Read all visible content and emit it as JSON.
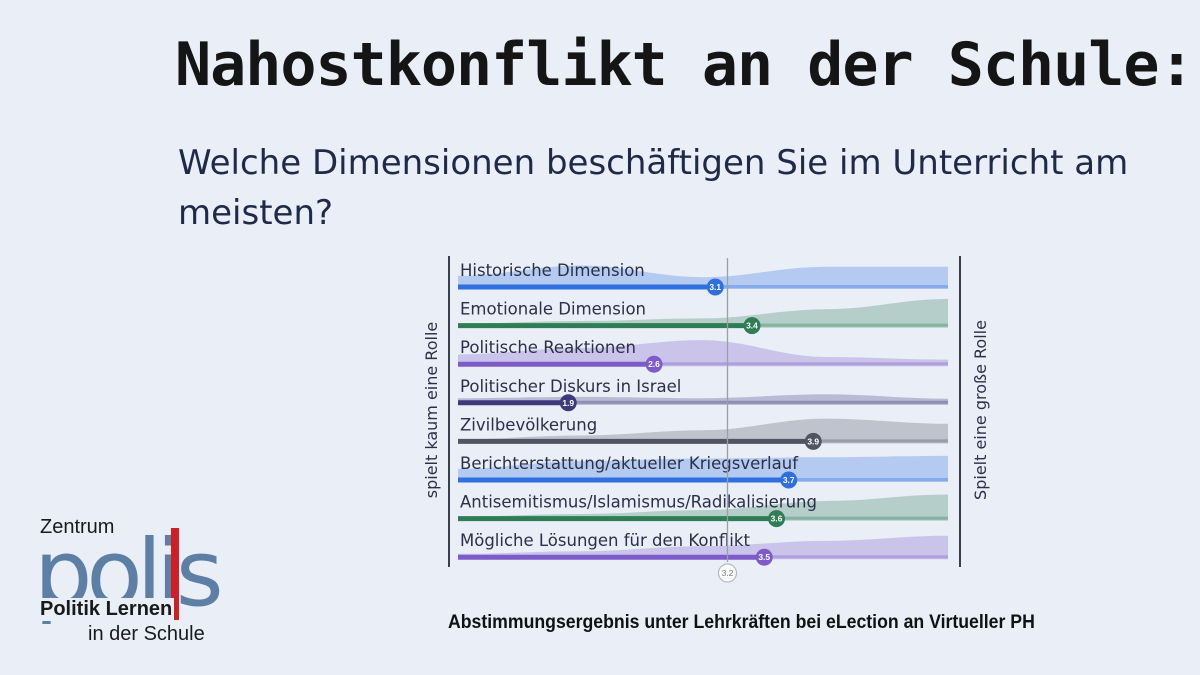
{
  "title": "Nahostkonflikt an der Schule:",
  "question": "Welche Dimensionen beschäftigen Sie im Unterricht am meisten?",
  "caption": "Abstimmungsergebnis unter Lehrkräften bei eLection an Virtueller PH",
  "logo": {
    "top": "Zentrum",
    "big": "polis",
    "line1": "Politik Lernen",
    "line2": "in der Schule",
    "brand_color": "#5d7fa6",
    "accent_color": "#cf1f25"
  },
  "chart_data": {
    "type": "scale-rating",
    "left_label": "spielt kaum eine Rolle",
    "right_label": "Spielt eine große Rolle",
    "scale": [
      1,
      5
    ],
    "mean": 3.2,
    "mean_label": "3.2",
    "items": [
      {
        "label": "Historische Dimension",
        "value": 3.1,
        "value_label": "3.1",
        "color": "#2f6fe0"
      },
      {
        "label": "Emotionale Dimension",
        "value": 3.4,
        "value_label": "3.4",
        "color": "#2e7d55"
      },
      {
        "label": "Politische Reaktionen",
        "value": 2.6,
        "value_label": "2.6",
        "color": "#7e5bc9"
      },
      {
        "label": "Politischer Diskurs in Israel",
        "value": 1.9,
        "value_label": "1.9",
        "color": "#3d3a7a"
      },
      {
        "label": "Zivilbevölkerung",
        "value": 3.9,
        "value_label": "3.9",
        "color": "#4f5563"
      },
      {
        "label": "Berichterstattung/aktueller Kriegsverlauf",
        "value": 3.7,
        "value_label": "3.7",
        "color": "#2f6fe0"
      },
      {
        "label": "Antisemitismus/Islamismus/Radikalisierung",
        "value": 3.6,
        "value_label": "3.6",
        "color": "#2e7d55"
      },
      {
        "label": "Mögliche Lösungen für den Konflikt",
        "value": 3.5,
        "value_label": "3.5",
        "color": "#7e5bc9"
      }
    ]
  }
}
